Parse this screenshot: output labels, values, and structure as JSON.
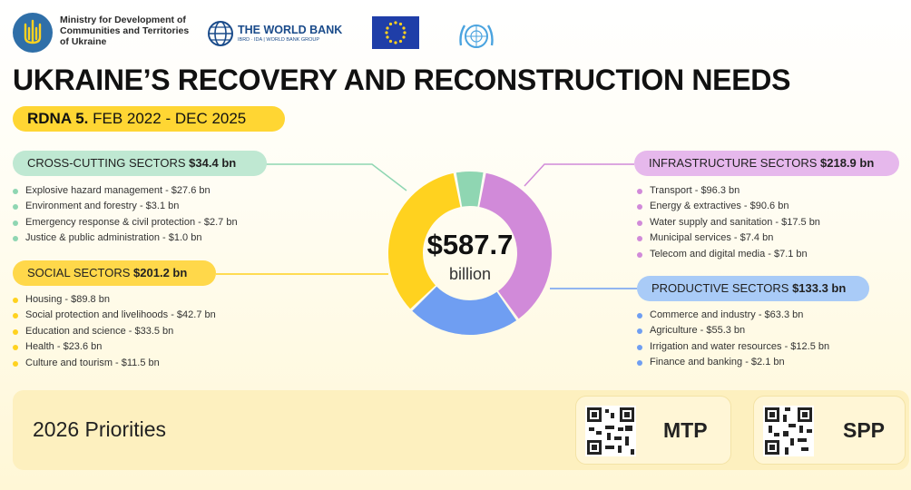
{
  "header": {
    "ministry": "Ministry for Development of Communities and Territories of Ukraine",
    "world_bank_title": "THE WORLD BANK",
    "world_bank_sub": "IBRD · IDA | WORLD BANK GROUP"
  },
  "title": "UKRAINE’S RECOVERY AND RECONSTRUCTION NEEDS",
  "rdna": {
    "bold": "RDNA 5.",
    "period": " FEB 2022 - DEC 2025"
  },
  "total": {
    "value": "$587.7",
    "unit": "billion"
  },
  "sectors": {
    "cross_cutting": {
      "name": "CROSS-CUTTING SECTORS ",
      "amount": "$34.4 bn",
      "color": "#8fd6b2",
      "items": [
        "Explosive hazard management - $27.6 bn",
        "Environment and forestry - $3.1 bn",
        "Emergency response & civil protection - $2.7 bn",
        "Justice & public administration - $1.0 bn"
      ]
    },
    "social": {
      "name": "SOCIAL SECTORS ",
      "amount": "$201.2 bn",
      "color": "#ffd21f",
      "items": [
        "Housing - $89.8 bn",
        "Social protection and livelihoods - $42.7 bn",
        "Education and science - $33.5 bn",
        "Health - $23.6 bn",
        "Culture and tourism - $11.5 bn"
      ]
    },
    "infrastructure": {
      "name": "INFRASTRUCTURE SECTORS ",
      "amount": "$218.9 bn",
      "color": "#d18ad9",
      "items": [
        "Transport - $96.3 bn",
        "Energy & extractives - $90.6 bn",
        "Water supply and sanitation - $17.5 bn",
        "Municipal services - $7.4 bn",
        "Telecom and digital media - $7.1 bn"
      ]
    },
    "productive": {
      "name": "PRODUCTIVE SECTORS ",
      "amount": "$133.3 bn",
      "color": "#6f9ef2",
      "items": [
        "Commerce and industry - $63.3 bn",
        "Agriculture - $55.3 bn",
        "Irrigation and water resources - $12.5 bn",
        "Finance and banking - $2.1 bn"
      ]
    }
  },
  "donut_values": [
    218.9,
    133.3,
    201.2,
    34.4
  ],
  "priorities": {
    "label": "2026 Priorities",
    "mtp": "MTP",
    "spp": "SPP"
  }
}
